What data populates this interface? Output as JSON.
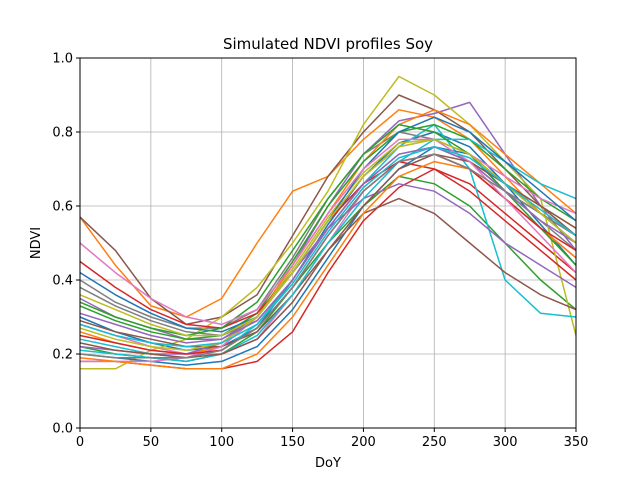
{
  "chart_data": {
    "type": "line",
    "title": "Simulated NDVI profiles Soy",
    "xlabel": "DoY",
    "ylabel": "NDVI",
    "xlim": [
      0,
      350
    ],
    "ylim": [
      0.0,
      1.0
    ],
    "xticks": [
      "0",
      "50",
      "100",
      "150",
      "200",
      "250",
      "300",
      "350"
    ],
    "yticks": [
      "0.0",
      "0.2",
      "0.4",
      "0.6",
      "0.8",
      "1.0"
    ],
    "grid": true,
    "legend": "none",
    "x": [
      0,
      25,
      50,
      75,
      100,
      125,
      150,
      175,
      200,
      225,
      250,
      275,
      300,
      325,
      350
    ],
    "series": [
      {
        "color": "#1f77b4",
        "values": [
          0.3,
          0.26,
          0.23,
          0.21,
          0.22,
          0.27,
          0.4,
          0.55,
          0.68,
          0.77,
          0.8,
          0.76,
          0.66,
          0.55,
          0.44
        ]
      },
      {
        "color": "#ff7f0e",
        "values": [
          0.57,
          0.44,
          0.33,
          0.3,
          0.35,
          0.5,
          0.64,
          0.68,
          0.78,
          0.86,
          0.84,
          0.78,
          0.68,
          0.58,
          0.5
        ]
      },
      {
        "color": "#2ca02c",
        "values": [
          0.22,
          0.2,
          0.19,
          0.18,
          0.2,
          0.26,
          0.38,
          0.5,
          0.6,
          0.68,
          0.66,
          0.6,
          0.5,
          0.4,
          0.32
        ]
      },
      {
        "color": "#d62728",
        "values": [
          0.18,
          0.18,
          0.17,
          0.16,
          0.16,
          0.18,
          0.26,
          0.42,
          0.56,
          0.65,
          0.7,
          0.66,
          0.58,
          0.5,
          0.42
        ]
      },
      {
        "color": "#9467bd",
        "values": [
          0.35,
          0.3,
          0.27,
          0.24,
          0.24,
          0.3,
          0.44,
          0.6,
          0.74,
          0.83,
          0.85,
          0.88,
          0.74,
          0.6,
          0.48
        ]
      },
      {
        "color": "#8c564b",
        "values": [
          0.57,
          0.48,
          0.35,
          0.28,
          0.3,
          0.36,
          0.52,
          0.68,
          0.8,
          0.9,
          0.86,
          0.8,
          0.7,
          0.6,
          0.52
        ]
      },
      {
        "color": "#e377c2",
        "values": [
          0.28,
          0.25,
          0.22,
          0.2,
          0.2,
          0.24,
          0.36,
          0.5,
          0.64,
          0.72,
          0.74,
          0.7,
          0.62,
          0.54,
          0.46
        ]
      },
      {
        "color": "#7f7f7f",
        "values": [
          0.4,
          0.34,
          0.3,
          0.27,
          0.27,
          0.32,
          0.46,
          0.62,
          0.74,
          0.8,
          0.78,
          0.74,
          0.64,
          0.56,
          0.48
        ]
      },
      {
        "color": "#bcbd22",
        "values": [
          0.16,
          0.16,
          0.21,
          0.24,
          0.3,
          0.38,
          0.5,
          0.64,
          0.82,
          0.95,
          0.9,
          0.82,
          0.72,
          0.62,
          0.25
        ]
      },
      {
        "color": "#17becf",
        "values": [
          0.24,
          0.22,
          0.2,
          0.19,
          0.21,
          0.28,
          0.4,
          0.54,
          0.66,
          0.76,
          0.82,
          0.7,
          0.4,
          0.31,
          0.3
        ]
      },
      {
        "color": "#1f77b4",
        "values": [
          0.2,
          0.19,
          0.18,
          0.17,
          0.18,
          0.22,
          0.32,
          0.46,
          0.6,
          0.7,
          0.76,
          0.74,
          0.66,
          0.58,
          0.5
        ]
      },
      {
        "color": "#ff7f0e",
        "values": [
          0.26,
          0.23,
          0.21,
          0.2,
          0.22,
          0.3,
          0.44,
          0.58,
          0.72,
          0.82,
          0.86,
          0.82,
          0.74,
          0.66,
          0.58
        ]
      },
      {
        "color": "#2ca02c",
        "values": [
          0.33,
          0.29,
          0.26,
          0.24,
          0.25,
          0.31,
          0.45,
          0.6,
          0.72,
          0.8,
          0.82,
          0.78,
          0.7,
          0.62,
          0.56
        ]
      },
      {
        "color": "#d62728",
        "values": [
          0.45,
          0.38,
          0.32,
          0.28,
          0.27,
          0.31,
          0.42,
          0.56,
          0.66,
          0.72,
          0.7,
          0.64,
          0.56,
          0.48,
          0.4
        ]
      },
      {
        "color": "#9467bd",
        "values": [
          0.22,
          0.21,
          0.2,
          0.2,
          0.23,
          0.3,
          0.42,
          0.54,
          0.62,
          0.66,
          0.64,
          0.58,
          0.5,
          0.44,
          0.38
        ]
      },
      {
        "color": "#8c564b",
        "values": [
          0.29,
          0.26,
          0.24,
          0.22,
          0.22,
          0.26,
          0.36,
          0.48,
          0.58,
          0.62,
          0.58,
          0.5,
          0.42,
          0.36,
          0.32
        ]
      },
      {
        "color": "#e377c2",
        "values": [
          0.18,
          0.18,
          0.18,
          0.19,
          0.22,
          0.3,
          0.42,
          0.56,
          0.68,
          0.76,
          0.78,
          0.74,
          0.68,
          0.62,
          0.58
        ]
      },
      {
        "color": "#7f7f7f",
        "values": [
          0.38,
          0.33,
          0.29,
          0.26,
          0.25,
          0.29,
          0.4,
          0.54,
          0.66,
          0.74,
          0.76,
          0.72,
          0.64,
          0.58,
          0.52
        ]
      },
      {
        "color": "#bcbd22",
        "values": [
          0.27,
          0.24,
          0.22,
          0.21,
          0.23,
          0.3,
          0.43,
          0.57,
          0.69,
          0.77,
          0.78,
          0.74,
          0.66,
          0.6,
          0.54
        ]
      },
      {
        "color": "#17becf",
        "values": [
          0.21,
          0.2,
          0.19,
          0.18,
          0.2,
          0.25,
          0.36,
          0.5,
          0.62,
          0.72,
          0.78,
          0.78,
          0.72,
          0.66,
          0.62
        ]
      },
      {
        "color": "#1f77b4",
        "values": [
          0.42,
          0.36,
          0.31,
          0.27,
          0.26,
          0.3,
          0.42,
          0.56,
          0.7,
          0.8,
          0.84,
          0.8,
          0.72,
          0.64,
          0.56
        ]
      },
      {
        "color": "#ff7f0e",
        "values": [
          0.19,
          0.18,
          0.17,
          0.16,
          0.16,
          0.2,
          0.3,
          0.44,
          0.58,
          0.68,
          0.72,
          0.7,
          0.62,
          0.54,
          0.46
        ]
      },
      {
        "color": "#2ca02c",
        "values": [
          0.34,
          0.3,
          0.27,
          0.25,
          0.27,
          0.34,
          0.48,
          0.62,
          0.74,
          0.82,
          0.8,
          0.74,
          0.64,
          0.54,
          0.44
        ]
      },
      {
        "color": "#d62728",
        "values": [
          0.25,
          0.23,
          0.21,
          0.2,
          0.21,
          0.27,
          0.38,
          0.52,
          0.64,
          0.72,
          0.74,
          0.7,
          0.62,
          0.54,
          0.48
        ]
      },
      {
        "color": "#9467bd",
        "values": [
          0.31,
          0.28,
          0.25,
          0.23,
          0.24,
          0.29,
          0.4,
          0.54,
          0.66,
          0.74,
          0.76,
          0.72,
          0.64,
          0.56,
          0.5
        ]
      },
      {
        "color": "#8c564b",
        "values": [
          0.23,
          0.21,
          0.2,
          0.19,
          0.2,
          0.24,
          0.34,
          0.48,
          0.6,
          0.7,
          0.74,
          0.72,
          0.66,
          0.6,
          0.54
        ]
      },
      {
        "color": "#e377c2",
        "values": [
          0.5,
          0.42,
          0.35,
          0.3,
          0.28,
          0.32,
          0.44,
          0.58,
          0.7,
          0.78,
          0.78,
          0.72,
          0.62,
          0.52,
          0.42
        ]
      },
      {
        "color": "#7f7f7f",
        "values": [
          0.2,
          0.19,
          0.19,
          0.19,
          0.21,
          0.27,
          0.38,
          0.52,
          0.64,
          0.72,
          0.74,
          0.7,
          0.64,
          0.58,
          0.52
        ]
      },
      {
        "color": "#bcbd22",
        "values": [
          0.36,
          0.32,
          0.28,
          0.25,
          0.25,
          0.3,
          0.42,
          0.56,
          0.68,
          0.76,
          0.78,
          0.74,
          0.66,
          0.58,
          0.5
        ]
      },
      {
        "color": "#17becf",
        "values": [
          0.28,
          0.25,
          0.23,
          0.22,
          0.23,
          0.28,
          0.39,
          0.53,
          0.65,
          0.73,
          0.76,
          0.73,
          0.66,
          0.59,
          0.52
        ]
      }
    ]
  }
}
